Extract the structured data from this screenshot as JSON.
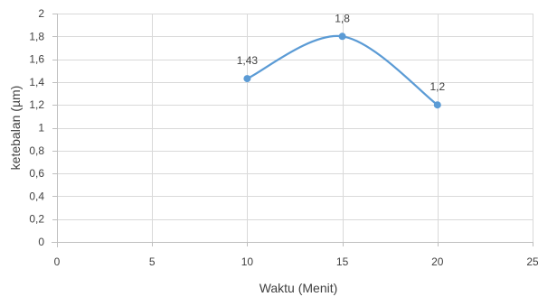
{
  "chart_data": {
    "type": "line",
    "title": "",
    "xlabel": "Waktu (Menit)",
    "ylabel": "ketebalan (µm)",
    "xlim": [
      0,
      25
    ],
    "ylim": [
      0,
      2
    ],
    "x_ticks": [
      0,
      5,
      10,
      15,
      20,
      25
    ],
    "y_ticks": [
      0,
      0.2,
      0.4,
      0.6,
      0.8,
      1,
      1.2,
      1.4,
      1.6,
      1.8,
      2
    ],
    "x_tick_labels": [
      "0",
      "5",
      "10",
      "15",
      "20",
      "25"
    ],
    "y_tick_labels": [
      "0",
      "0,2",
      "0,4",
      "0,6",
      "0,8",
      "1",
      "1,2",
      "1,4",
      "1,6",
      "1,8",
      "2"
    ],
    "grid": true,
    "legend": "none",
    "smooth": true,
    "series": [
      {
        "x": [
          10,
          15,
          20
        ],
        "values": [
          1.43,
          1.8,
          1.2
        ],
        "data_labels": [
          "1,43",
          "1,8",
          "1,2"
        ],
        "color": "#5b9bd5"
      }
    ]
  }
}
